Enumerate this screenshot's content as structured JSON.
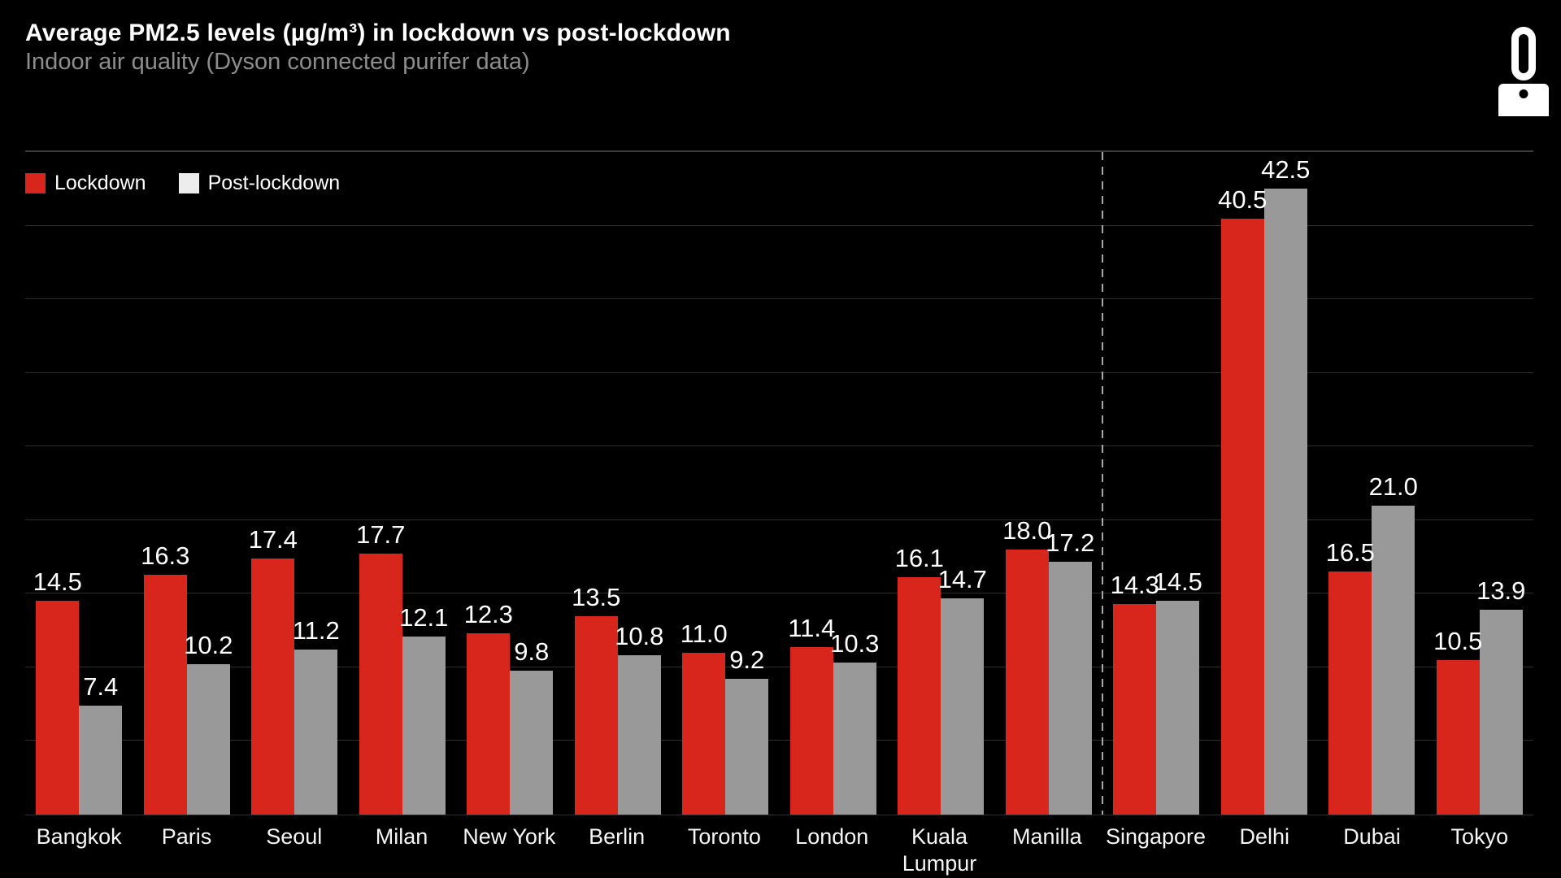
{
  "header": {
    "title": "Average PM2.5 levels (µg/m³) in lockdown vs post-lockdown",
    "subtitle": "Indoor air quality (Dyson connected purifer data)",
    "logo": "dyson-purifier-icon"
  },
  "colors": {
    "background": "#000000",
    "lockdown_bar": "#d9261c",
    "post_lockdown_bar": "#999999",
    "post_lockdown_legend_swatch": "#ededed",
    "gridline": "#2e2e2e",
    "chart_top_border": "#3b3b3b",
    "divider_dash": "#a8a8a8",
    "title_text": "#ffffff",
    "subtitle_text": "#8d8d8d",
    "value_label_text": "#ffffff",
    "axis_label_text": "#f5f5f5"
  },
  "chart_data": {
    "type": "bar",
    "title": "Average PM2.5 levels (µg/m³) in lockdown vs post-lockdown",
    "subtitle": "Indoor air quality (Dyson connected purifer data)",
    "xlabel": "",
    "ylabel": "",
    "ylim": [
      0,
      45
    ],
    "gridline_step": 5,
    "grid": "horizontal-on",
    "y_axis_ticks_visible": false,
    "legend_position": "top-left",
    "value_labels": "above-bars, one decimal",
    "divider_after_category": "Manilla",
    "categories": [
      "Bangkok",
      "Paris",
      "Seoul",
      "Milan",
      "New York",
      "Berlin",
      "Toronto",
      "London",
      "Kuala Lumpur",
      "Manilla",
      "Singapore",
      "Delhi",
      "Dubai",
      "Tokyo"
    ],
    "series": [
      {
        "name": "Lockdown",
        "bar_color": "#d9261c",
        "legend_color": "#d9261c",
        "values": [
          14.5,
          16.3,
          17.4,
          17.7,
          12.3,
          13.5,
          11.0,
          11.4,
          16.1,
          18.0,
          14.3,
          40.5,
          16.5,
          10.5
        ]
      },
      {
        "name": "Post-lockdown",
        "bar_color": "#999999",
        "legend_color": "#ededed",
        "values": [
          7.4,
          10.2,
          11.2,
          12.1,
          9.8,
          10.8,
          9.2,
          10.3,
          14.7,
          17.2,
          14.5,
          42.5,
          21.0,
          13.9
        ]
      }
    ]
  }
}
